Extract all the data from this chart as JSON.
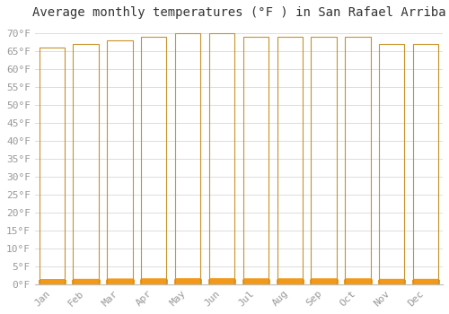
{
  "title": "Average monthly temperatures (°F ) in San Rafael Arriba",
  "months": [
    "Jan",
    "Feb",
    "Mar",
    "Apr",
    "May",
    "Jun",
    "Jul",
    "Aug",
    "Sep",
    "Oct",
    "Nov",
    "Dec"
  ],
  "values": [
    66,
    67,
    68,
    69,
    70,
    70,
    69,
    69,
    69,
    69,
    67,
    67
  ],
  "bar_color_top": "#F5A623",
  "bar_color_bottom": "#FFD966",
  "bar_edge_color": "#C8922A",
  "background_color": "#FFFFFF",
  "grid_color": "#DDDDDD",
  "ylim": [
    0,
    72
  ],
  "ytick_step": 5,
  "title_fontsize": 10,
  "tick_fontsize": 8,
  "tick_color": "#999999",
  "title_color": "#333333"
}
